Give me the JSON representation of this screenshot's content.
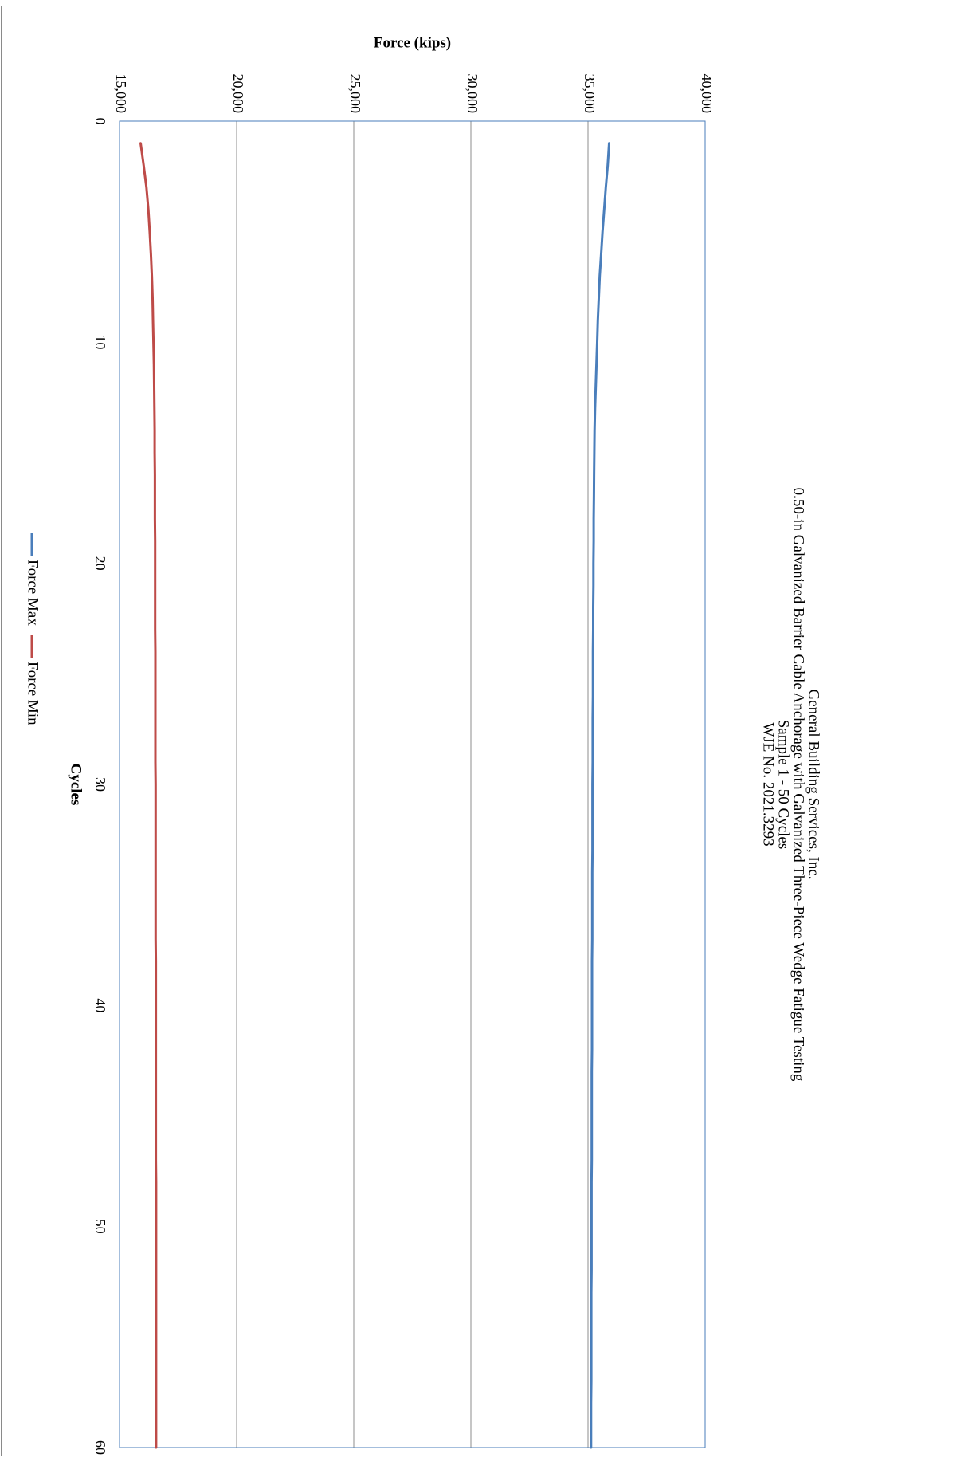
{
  "chart_data": {
    "type": "line",
    "orientation": "rotated 90° clockwise",
    "title": [
      "General Building Services, Inc.",
      "0.50-in Galvanized Barrier Cable Anchorage with Galvanized Three-Piece Wedge Fatigue Testing",
      "Sample 1 - 50 Cycles",
      "WJE No. 2021.3293"
    ],
    "xlabel": "Cycles",
    "ylabel": "Force (kips)",
    "xlim": [
      0,
      60
    ],
    "ylim": [
      15000,
      40000
    ],
    "x_ticks": [
      0,
      10,
      20,
      30,
      40,
      50,
      60
    ],
    "y_ticks": [
      15000,
      20000,
      25000,
      30000,
      35000,
      40000
    ],
    "y_tick_labels": [
      "15,000",
      "20,000",
      "25,000",
      "30,000",
      "35,000",
      "40,000"
    ],
    "grid": "major gridlines on force axis",
    "legend": "bottom",
    "series": [
      {
        "name": "Force Max",
        "color": "#4a7ebb",
        "x": [
          1,
          2,
          3,
          4,
          5,
          6,
          7,
          8,
          9,
          10,
          11,
          12,
          13,
          14,
          15,
          16,
          17,
          18,
          19,
          20,
          21,
          22,
          23,
          24,
          25,
          26,
          27,
          28,
          29,
          30,
          31,
          32,
          33,
          34,
          35,
          36,
          37,
          38,
          39,
          40,
          41,
          42,
          43,
          44,
          45,
          46,
          47,
          48,
          49,
          50,
          51,
          52,
          53,
          54,
          55,
          56,
          57,
          58,
          59,
          60
        ],
        "values": [
          35900,
          35840,
          35760,
          35690,
          35620,
          35560,
          35500,
          35460,
          35420,
          35390,
          35360,
          35330,
          35300,
          35280,
          35270,
          35260,
          35250,
          35240,
          35240,
          35230,
          35230,
          35220,
          35220,
          35210,
          35210,
          35210,
          35200,
          35200,
          35200,
          35190,
          35190,
          35190,
          35190,
          35180,
          35180,
          35180,
          35180,
          35170,
          35170,
          35170,
          35170,
          35170,
          35160,
          35160,
          35160,
          35160,
          35160,
          35150,
          35150,
          35150,
          35150,
          35150,
          35140,
          35140,
          35140,
          35140,
          35140,
          35130,
          35130,
          35130
        ]
      },
      {
        "name": "Force Min",
        "color": "#be4b48",
        "x": [
          1,
          2,
          3,
          4,
          5,
          6,
          7,
          8,
          9,
          10,
          11,
          12,
          13,
          14,
          15,
          16,
          17,
          18,
          19,
          20,
          21,
          22,
          23,
          24,
          25,
          26,
          27,
          28,
          29,
          30,
          31,
          32,
          33,
          34,
          35,
          36,
          37,
          38,
          39,
          40,
          41,
          42,
          43,
          44,
          45,
          46,
          47,
          48,
          49,
          50,
          51,
          52,
          53,
          54,
          55,
          56,
          57,
          58,
          59,
          60
        ],
        "values": [
          15900,
          16030,
          16150,
          16230,
          16290,
          16340,
          16380,
          16410,
          16430,
          16450,
          16470,
          16480,
          16490,
          16500,
          16500,
          16510,
          16510,
          16510,
          16520,
          16520,
          16520,
          16520,
          16520,
          16530,
          16530,
          16530,
          16530,
          16530,
          16530,
          16540,
          16540,
          16540,
          16540,
          16540,
          16540,
          16540,
          16540,
          16550,
          16550,
          16550,
          16550,
          16550,
          16550,
          16550,
          16550,
          16550,
          16550,
          16560,
          16560,
          16560,
          16560,
          16560,
          16560,
          16560,
          16560,
          16560,
          16560,
          16560,
          16560,
          16560
        ]
      }
    ]
  }
}
